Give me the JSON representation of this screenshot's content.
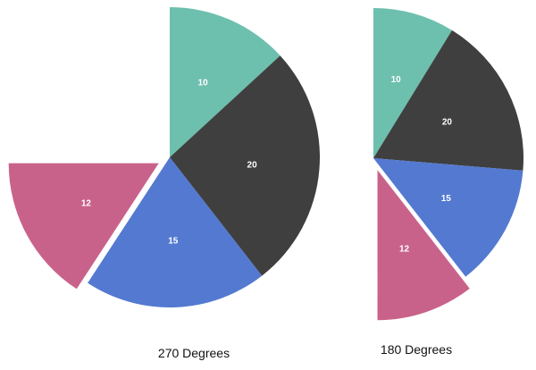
{
  "chart_data": [
    {
      "type": "pie",
      "caption": "270 Degrees",
      "total_angle_degrees": 270,
      "slices": [
        {
          "label": "10",
          "value": 10,
          "color": "#6dbfae",
          "exploded": false
        },
        {
          "label": "20",
          "value": 20,
          "color": "#3f3f3f",
          "exploded": false
        },
        {
          "label": "15",
          "value": 15,
          "color": "#5479d1",
          "exploded": false
        },
        {
          "label": "12",
          "value": 12,
          "color": "#c9628a",
          "exploded": true
        }
      ]
    },
    {
      "type": "pie",
      "caption": "180 Degrees",
      "total_angle_degrees": 180,
      "slices": [
        {
          "label": "10",
          "value": 10,
          "color": "#6dbfae",
          "exploded": false
        },
        {
          "label": "20",
          "value": 20,
          "color": "#3f3f3f",
          "exploded": false
        },
        {
          "label": "15",
          "value": 15,
          "color": "#5479d1",
          "exploded": false
        },
        {
          "label": "12",
          "value": 12,
          "color": "#c9628a",
          "exploded": true
        }
      ]
    }
  ]
}
